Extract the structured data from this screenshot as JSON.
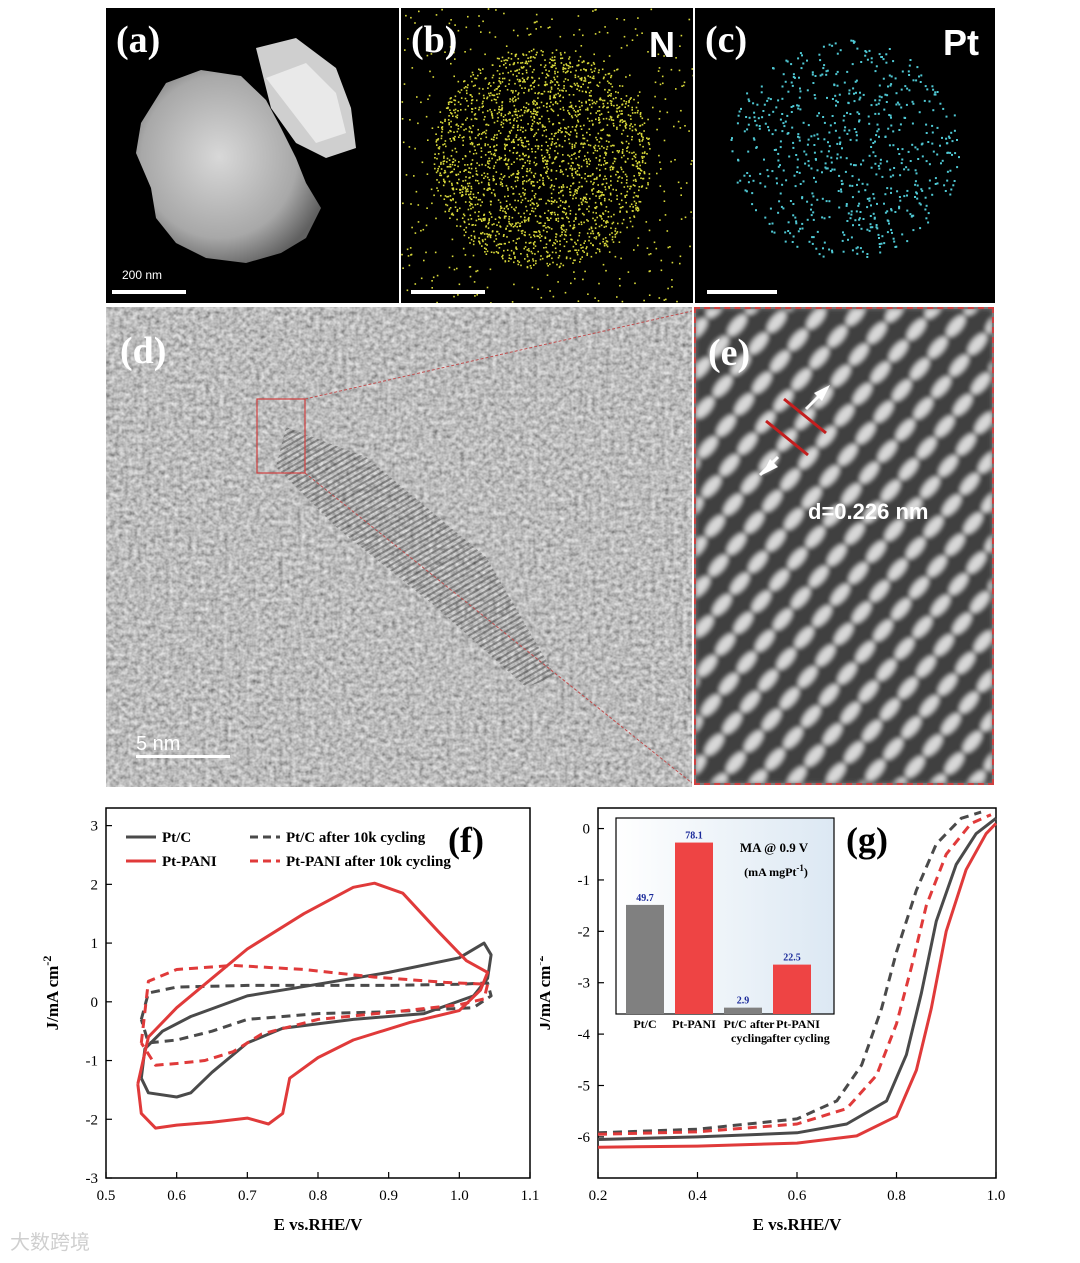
{
  "panels": {
    "a": {
      "label": "(a)",
      "scale": "200 nm"
    },
    "b": {
      "label": "(b)",
      "element": "N"
    },
    "c": {
      "label": "(c)",
      "element": "Pt"
    },
    "d": {
      "label": "(d)",
      "scale": "5 nm"
    },
    "e": {
      "label": "(e)",
      "annotation": "d=0.226 nm"
    }
  },
  "colors": {
    "ptc": "#4a4a4a",
    "ptpani": "#e03a3a",
    "n_dots": "#d9d93a",
    "pt_dots": "#4fc9d4",
    "inset_bg": "#dce8f3"
  },
  "chart_data": [
    {
      "panel_label": "(f)",
      "type": "line",
      "xlabel": "E vs.RHE/V",
      "ylabel": "J/mA cm",
      "ylabel_sup": "-2",
      "xlim": [
        0.5,
        1.1
      ],
      "ylim": [
        -3,
        3.3
      ],
      "xticks": [
        "0.5",
        "0.6",
        "0.7",
        "0.8",
        "0.9",
        "1.0",
        "1.1"
      ],
      "yticks": [
        "-3",
        "-2",
        "-1",
        "0",
        "1",
        "2",
        "3"
      ],
      "legend": [
        {
          "name": "Pt/C",
          "style": "solid",
          "color": "#4a4a4a"
        },
        {
          "name": "Pt/C after 10k cycling",
          "style": "dashed",
          "color": "#4a4a4a"
        },
        {
          "name": "Pt-PANI",
          "style": "solid",
          "color": "#e03a3a"
        },
        {
          "name": "Pt-PANI after 10k cycling",
          "style": "dashed",
          "color": "#e03a3a"
        }
      ],
      "series": [
        {
          "name": "Pt/C",
          "style": "solid",
          "color": "#4a4a4a",
          "points": [
            [
              0.55,
              -1.3
            ],
            [
              0.555,
              -0.8
            ],
            [
              0.58,
              -0.5
            ],
            [
              0.62,
              -0.25
            ],
            [
              0.7,
              0.1
            ],
            [
              0.8,
              0.3
            ],
            [
              0.9,
              0.5
            ],
            [
              1.0,
              0.75
            ],
            [
              1.035,
              1.0
            ],
            [
              1.045,
              0.8
            ],
            [
              1.04,
              0.4
            ],
            [
              1.02,
              0.1
            ],
            [
              0.95,
              -0.2
            ],
            [
              0.85,
              -0.3
            ],
            [
              0.75,
              -0.45
            ],
            [
              0.7,
              -0.7
            ],
            [
              0.65,
              -1.2
            ],
            [
              0.62,
              -1.55
            ],
            [
              0.6,
              -1.62
            ],
            [
              0.56,
              -1.55
            ],
            [
              0.55,
              -1.3
            ]
          ]
        },
        {
          "name": "Pt/C after 10k cycling",
          "style": "dashed",
          "color": "#4a4a4a",
          "points": [
            [
              0.55,
              -0.3
            ],
            [
              0.56,
              0.15
            ],
            [
              0.6,
              0.25
            ],
            [
              0.7,
              0.28
            ],
            [
              0.8,
              0.28
            ],
            [
              0.9,
              0.28
            ],
            [
              1.0,
              0.3
            ],
            [
              1.04,
              0.32
            ],
            [
              1.045,
              0.1
            ],
            [
              1.02,
              -0.1
            ],
            [
              0.9,
              -0.17
            ],
            [
              0.8,
              -0.2
            ],
            [
              0.7,
              -0.3
            ],
            [
              0.65,
              -0.5
            ],
            [
              0.6,
              -0.65
            ],
            [
              0.56,
              -0.7
            ],
            [
              0.55,
              -0.3
            ]
          ]
        },
        {
          "name": "Pt-PANI",
          "style": "solid",
          "color": "#e03a3a",
          "points": [
            [
              0.545,
              -1.4
            ],
            [
              0.56,
              -0.6
            ],
            [
              0.6,
              -0.1
            ],
            [
              0.65,
              0.4
            ],
            [
              0.7,
              0.9
            ],
            [
              0.78,
              1.5
            ],
            [
              0.85,
              1.95
            ],
            [
              0.88,
              2.02
            ],
            [
              0.92,
              1.85
            ],
            [
              0.97,
              1.2
            ],
            [
              1.01,
              0.7
            ],
            [
              1.04,
              0.5
            ],
            [
              1.03,
              0.2
            ],
            [
              1.0,
              -0.15
            ],
            [
              0.93,
              -0.35
            ],
            [
              0.85,
              -0.65
            ],
            [
              0.8,
              -0.95
            ],
            [
              0.76,
              -1.3
            ],
            [
              0.75,
              -1.9
            ],
            [
              0.73,
              -2.08
            ],
            [
              0.7,
              -1.98
            ],
            [
              0.65,
              -2.05
            ],
            [
              0.6,
              -2.1
            ],
            [
              0.57,
              -2.15
            ],
            [
              0.55,
              -1.9
            ],
            [
              0.545,
              -1.4
            ]
          ]
        },
        {
          "name": "Pt-PANI after 10k cycling",
          "style": "dashed",
          "color": "#e03a3a",
          "points": [
            [
              0.55,
              -0.7
            ],
            [
              0.56,
              0.35
            ],
            [
              0.6,
              0.55
            ],
            [
              0.68,
              0.62
            ],
            [
              0.78,
              0.55
            ],
            [
              0.88,
              0.42
            ],
            [
              0.98,
              0.33
            ],
            [
              1.04,
              0.3
            ],
            [
              1.035,
              0.05
            ],
            [
              1.0,
              -0.05
            ],
            [
              0.9,
              -0.18
            ],
            [
              0.8,
              -0.3
            ],
            [
              0.72,
              -0.55
            ],
            [
              0.68,
              -0.85
            ],
            [
              0.64,
              -1.0
            ],
            [
              0.6,
              -1.05
            ],
            [
              0.57,
              -1.08
            ],
            [
              0.55,
              -0.7
            ]
          ]
        }
      ]
    },
    {
      "panel_label": "(g)",
      "type": "line",
      "xlabel": "E vs.RHE/V",
      "ylabel": "J/mA cm",
      "ylabel_sup": "-2",
      "xlim": [
        0.2,
        1.0
      ],
      "ylim": [
        -6.8,
        0.4
      ],
      "xticks": [
        "0.2",
        "0.4",
        "0.6",
        "0.8",
        "1.0"
      ],
      "yticks": [
        "-6",
        "-5",
        "-4",
        "-3",
        "-2",
        "-1",
        "0"
      ],
      "series": [
        {
          "name": "Pt/C",
          "style": "solid",
          "color": "#4a4a4a",
          "points": [
            [
              0.2,
              -6.05
            ],
            [
              0.4,
              -6.0
            ],
            [
              0.6,
              -5.92
            ],
            [
              0.7,
              -5.75
            ],
            [
              0.78,
              -5.3
            ],
            [
              0.82,
              -4.4
            ],
            [
              0.85,
              -3.2
            ],
            [
              0.88,
              -1.8
            ],
            [
              0.92,
              -0.7
            ],
            [
              0.96,
              -0.1
            ],
            [
              1.0,
              0.2
            ]
          ]
        },
        {
          "name": "Pt/C after 10k cycling",
          "style": "dashed",
          "color": "#4a4a4a",
          "points": [
            [
              0.2,
              -5.92
            ],
            [
              0.4,
              -5.85
            ],
            [
              0.6,
              -5.65
            ],
            [
              0.68,
              -5.3
            ],
            [
              0.73,
              -4.6
            ],
            [
              0.77,
              -3.5
            ],
            [
              0.8,
              -2.4
            ],
            [
              0.84,
              -1.2
            ],
            [
              0.88,
              -0.3
            ],
            [
              0.93,
              0.2
            ],
            [
              0.97,
              0.32
            ]
          ]
        },
        {
          "name": "Pt-PANI",
          "style": "solid",
          "color": "#e03a3a",
          "points": [
            [
              0.2,
              -6.2
            ],
            [
              0.4,
              -6.18
            ],
            [
              0.6,
              -6.12
            ],
            [
              0.72,
              -5.98
            ],
            [
              0.8,
              -5.6
            ],
            [
              0.84,
              -4.7
            ],
            [
              0.87,
              -3.5
            ],
            [
              0.9,
              -2.0
            ],
            [
              0.94,
              -0.8
            ],
            [
              0.98,
              -0.1
            ],
            [
              1.0,
              0.1
            ]
          ]
        },
        {
          "name": "Pt-PANI after 10k cycling",
          "style": "dashed",
          "color": "#e03a3a",
          "points": [
            [
              0.2,
              -5.95
            ],
            [
              0.4,
              -5.9
            ],
            [
              0.6,
              -5.75
            ],
            [
              0.7,
              -5.45
            ],
            [
              0.76,
              -4.8
            ],
            [
              0.8,
              -3.8
            ],
            [
              0.83,
              -2.7
            ],
            [
              0.86,
              -1.5
            ],
            [
              0.9,
              -0.5
            ],
            [
              0.95,
              0.1
            ],
            [
              0.99,
              0.27
            ]
          ]
        }
      ],
      "inset": {
        "type": "bar",
        "title": "MA @ 0.9 V",
        "unit": "(mA mgPt",
        "unit_sup": "-1",
        "unit_close": ")",
        "categories": [
          "Pt/C",
          "Pt-PANI",
          "Pt/C after cycling",
          "Pt-PANI after cycling"
        ],
        "category_lines": [
          [
            "Pt/C"
          ],
          [
            "Pt-PANI"
          ],
          [
            "Pt/C after",
            "cycling"
          ],
          [
            "Pt-PANI",
            "after cycling"
          ]
        ],
        "values": [
          49.7,
          78.1,
          2.9,
          22.5
        ],
        "value_labels": [
          "49.7",
          "78.1",
          "2.9",
          "22.5"
        ],
        "colors": [
          "#808080",
          "#ee4444",
          "#808080",
          "#ee4444"
        ],
        "ylim": [
          0,
          82
        ]
      }
    }
  ],
  "watermark": "大数跨境"
}
